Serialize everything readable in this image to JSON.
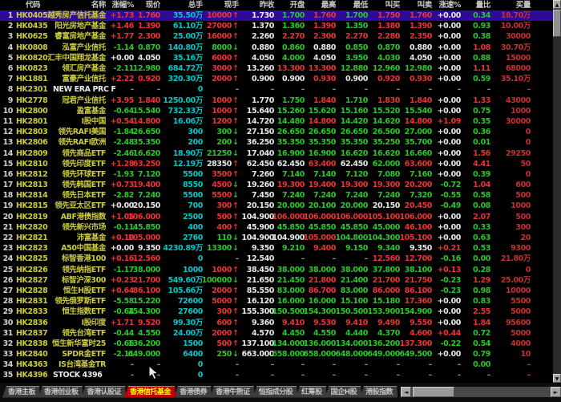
{
  "table": {
    "headers": [
      "代码",
      "名称",
      "涨幅%",
      "现价",
      "总手",
      "现手",
      "昨收",
      "开盘",
      "最高",
      "最低",
      "叫买",
      "叫卖",
      "涨速%",
      "量比",
      "买量"
    ],
    "selected_row": 1,
    "rows": [
      [
        "HK0405",
        "越秀房产信托基金",
        "+1.73",
        "1.760",
        "35.50万",
        "10000",
        "u",
        "r",
        "1.730",
        "1.700",
        "1.760",
        "1.700",
        "1.750",
        "1.760",
        "+0.00",
        "0.34",
        "18.70万"
      ],
      [
        "HK0435",
        "阳光房地产基金",
        "+1.46",
        "1.390",
        "61.10万",
        "27000",
        "u",
        "r",
        "1.370",
        "1.360",
        "1.390",
        "1.350",
        "1.380",
        "1.390",
        "+0.00",
        "0.93",
        "10.00万"
      ],
      [
        "HK0625",
        "睿富房地产基金",
        "+1.77",
        "2.300",
        "25.00万",
        "16000",
        "u",
        "r",
        "2.260",
        "2.270",
        "2.300",
        "2.270",
        "2.280",
        "2.350",
        "+0.00",
        "0.38",
        "30000"
      ],
      [
        "HK0808",
        "泓富产业信托",
        "-1.14",
        "0.870",
        "140.80万",
        "8000",
        "d",
        "g",
        "0.880",
        "0.860",
        "0.880",
        "0.850",
        "0.870",
        "0.880",
        "+0.00",
        "1.08",
        "30.70万"
      ],
      [
        "HK0820",
        "汇丰中国翔龙基金",
        "+0.00",
        "4.050",
        "35.16万",
        "6000",
        "u",
        "r",
        "4.050",
        "4.000",
        "4.050",
        "3.950",
        "4.030",
        "4.050",
        "+0.00",
        "0.88",
        "15000"
      ],
      [
        "HK0823",
        "领汇房产基金",
        "-2.11",
        "12.980",
        "684.72万",
        "3000",
        "u",
        "r",
        "13.260",
        "13.300",
        "13.300",
        "12.880",
        "12.960",
        "12.980",
        "+0.00",
        "1.11",
        "68000"
      ],
      [
        "HK1881",
        "富豪产业信托",
        "+2.22",
        "0.920",
        "320.30万",
        "2000",
        "u",
        "r",
        "0.900",
        "0.900",
        "0.930",
        "0.900",
        "0.920",
        "0.930",
        "+0.00",
        "0.59",
        "35.10万"
      ],
      [
        "HK2301",
        "NEW ERA PRC F",
        "–",
        "–",
        "0",
        "–",
        "",
        "x",
        "–",
        "–",
        "–",
        "–",
        "–",
        "–",
        "–",
        "–",
        "–"
      ],
      [
        "HK2778",
        "冠君产业信托",
        "+3.95",
        "1.840",
        "1250.00万",
        "1000",
        "u",
        "r",
        "1.770",
        "1.750",
        "1.840",
        "1.710",
        "1.830",
        "1.840",
        "+0.00",
        "1.33",
        "43000"
      ],
      [
        "HK2800",
        "盈富基金",
        "-0.64",
        "15.540",
        "732.33万",
        "1000",
        "u",
        "r",
        "15.640",
        "15.260",
        "15.620",
        "15.160",
        "15.520",
        "15.540",
        "+0.00",
        "0.75",
        "1000"
      ],
      [
        "HK2801",
        "Ⅰ股中国",
        "+0.54",
        "14.800",
        "16.06万",
        "1200",
        "u",
        "r",
        "14.720",
        "14.480",
        "14.800",
        "14.420",
        "14.620",
        "14.800",
        "+1.09",
        "0.35",
        "30000"
      ],
      [
        "HK2803",
        "领先RAFI美国",
        "-1.84",
        "26.650",
        "300",
        "300",
        "d",
        "g",
        "27.150",
        "26.650",
        "26.650",
        "26.650",
        "26.500",
        "27.000",
        "+0.00",
        "0.36",
        "0"
      ],
      [
        "HK2806",
        "领先RAFI欧洲",
        "-2.48",
        "35.350",
        "200",
        "200",
        "d",
        "g",
        "36.250",
        "35.350",
        "35.350",
        "35.350",
        "35.250",
        "35.700",
        "+0.00",
        "0.01",
        "0"
      ],
      [
        "HK2809",
        "领先商品ETF",
        "-2.46",
        "16.620",
        "18.90万",
        "21250",
        "d",
        "g",
        "17.040",
        "16.900",
        "16.900",
        "16.620",
        "16.620",
        "16.660",
        "+0.00",
        "1.56",
        "29250"
      ],
      [
        "HK2810",
        "领先印度ETF",
        "+1.28",
        "63.250",
        "12.19万",
        "28350",
        "u",
        "w",
        "62.450",
        "62.450",
        "63.400",
        "62.450",
        "62.000",
        "63.600",
        "+0.00",
        "4.41",
        "50"
      ],
      [
        "HK2812",
        "领先环球ETF",
        "-1.93",
        "7.120",
        "5500",
        "3500",
        "u",
        "r",
        "7.260",
        "7.140",
        "7.140",
        "7.120",
        "7.080",
        "7.160",
        "+0.00",
        "0.39",
        "0"
      ],
      [
        "HK2813",
        "领先韩国ETF",
        "+0.73",
        "19.400",
        "8550",
        "4500",
        "d",
        "r",
        "19.260",
        "19.300",
        "19.400",
        "19.300",
        "19.300",
        "20.200",
        "-0.72",
        "1.04",
        "600"
      ],
      [
        "HK2814",
        "领先日本ETF",
        "-2.82",
        "7.240",
        "5500",
        "5500",
        "d",
        "r",
        "7.450",
        "7.240",
        "7.240",
        "7.240",
        "7.240",
        "7.320",
        "-0.55",
        "0.58",
        "500"
      ],
      [
        "HK2815",
        "领先亚太区ETF",
        "+0.00",
        "20.150",
        "700",
        "300",
        "u",
        "r",
        "20.150",
        "20.000",
        "20.100",
        "20.000",
        "20.150",
        "20.450",
        "-0.49",
        "0.08",
        "1000"
      ],
      [
        "HK2819",
        "ABF港债指数",
        "+1.05",
        "106.000",
        "2500",
        "500",
        "u",
        "r",
        "104.900",
        "106.000",
        "106.000",
        "106.000",
        "105.100",
        "106.000",
        "+0.00",
        "2.07",
        "500"
      ],
      [
        "HK2820",
        "领先新兴市场",
        "-0.11",
        "45.850",
        "400",
        "400",
        "u",
        "r",
        "45.900",
        "45.850",
        "45.850",
        "45.850",
        "45.000",
        "46.100",
        "+0.00",
        "0.33",
        "300"
      ],
      [
        "HK2821",
        "沛富基金",
        "+0.10",
        "105.000",
        "2760",
        "110",
        "d",
        "g",
        "104.900",
        "104.900",
        "105.000",
        "104.800",
        "104.300",
        "105.100",
        "+0.00",
        "0.63",
        "20"
      ],
      [
        "HK2823",
        "A50中国基金",
        "+0.00",
        "9.350",
        "4230.89万",
        "13300",
        "d",
        "g",
        "9.350",
        "9.210",
        "9.400",
        "9.150",
        "9.340",
        "9.350",
        "+0.21",
        "0.53",
        "9300"
      ],
      [
        "HK2825",
        "标智香港100",
        "+0.16",
        "12.560",
        "0",
        "–",
        "",
        "x",
        "12.540",
        "–",
        "–",
        "–",
        "12.560",
        "12.700",
        "-0.16",
        "0.00",
        "21.80万"
      ],
      [
        "HK2826",
        "领先纳指ETF",
        "-1.17",
        "38.000",
        "1000",
        "1000",
        "u",
        "r",
        "38.450",
        "38.000",
        "38.000",
        "38.000",
        "37.800",
        "38.100",
        "+0.13",
        "0.28",
        "0"
      ],
      [
        "HK2827",
        "标智沪深300",
        "+0.23",
        "21.700",
        "549.60万",
        "100000",
        "d",
        "g",
        "21.650",
        "21.450",
        "21.800",
        "21.400",
        "21.700",
        "21.750",
        "-0.23",
        "1.29",
        "25.00万"
      ],
      [
        "HK2828",
        "恒生H股ETF",
        "+0.64",
        "86.100",
        "105.66万",
        "2000",
        "u",
        "r",
        "85.550",
        "83.000",
        "86.700",
        "83.000",
        "86.000",
        "86.100",
        "-0.23",
        "0.98",
        "10000"
      ],
      [
        "HK2831",
        "领先俄罗斯ETF",
        "-5.58",
        "15.220",
        "72600",
        "5000",
        "u",
        "r",
        "16.120",
        "16.000",
        "16.000",
        "15.100",
        "15.180",
        "17.360",
        "+0.00",
        "0.83",
        "5500"
      ],
      [
        "HK2833",
        "恒生指数ETF",
        "-0.64",
        "154.300",
        "27600",
        "300",
        "u",
        "r",
        "155.300",
        "150.500",
        "154.300",
        "150.500",
        "153.900",
        "154.900",
        "+0.00",
        "2.55",
        "5000"
      ],
      [
        "HK2836",
        "Ⅰ股印度",
        "+1.71",
        "9.520",
        "99.30万",
        "600",
        "u",
        "r",
        "9.360",
        "9.410",
        "9.530",
        "9.410",
        "9.490",
        "9.550",
        "+0.00",
        "1.84",
        "95600"
      ],
      [
        "HK2837",
        "领先台湾ETF",
        "-0.44",
        "4.550",
        "24.00万",
        "2000",
        "u",
        "r",
        "4.570",
        "4.450",
        "4.550",
        "4.440",
        "4.370",
        "4.600",
        "+0.44",
        "0.72",
        "5000"
      ],
      [
        "HK2838",
        "恒生新华富时25",
        "-0.66",
        "136.200",
        "1500",
        "500",
        "u",
        "r",
        "137.100",
        "134.000",
        "136.000",
        "134.000",
        "136.200",
        "137.300",
        "-0.22",
        "0.54",
        "4000"
      ],
      [
        "HK2840",
        "SPDR金ETF",
        "-2.11",
        "649.000",
        "6400",
        "250",
        "d",
        "g",
        "663.000",
        "658.000",
        "658.000",
        "648.000",
        "649.000",
        "649.500",
        "+0.00",
        "0.79",
        "10"
      ],
      [
        "HK4363",
        "ⅠS台湾基金TR",
        "–",
        "–",
        "0",
        "–",
        "",
        "x",
        "–",
        "–",
        "–",
        "–",
        "–",
        "–",
        "–",
        "0.00",
        "–"
      ],
      [
        "HK4396",
        "STOCK 4396",
        "–",
        "–",
        "0",
        "–",
        "",
        "x",
        "–",
        "–",
        "–",
        "–",
        "–",
        "–",
        "–",
        "–",
        "–"
      ]
    ]
  },
  "tabs": {
    "items": [
      "香港主板",
      "香港创业板",
      "香港认股证",
      "香港信托基金",
      "香港债券",
      "香港牛熊证",
      "恒指成分股",
      "红筹股",
      "国企H股",
      "港股指数"
    ],
    "active": "香港信托基金"
  },
  "glyphs": {
    "up_tick": "↑",
    "down_tick": "↓",
    "scroll_up": "▲",
    "scroll_down": "▼",
    "scroll_left": "◄",
    "scroll_right": "►"
  },
  "colors": {
    "up_red": "#ee3232",
    "down_green": "#28c828",
    "flat_white": "#e8e8e8",
    "dash_gray": "#8a8a8a",
    "volume_cyan": "#00c8c8",
    "code_yellow": "#cbcb3f",
    "header_gray": "#c8c8c8",
    "buy_vol_red": "#c63030",
    "selected_row_bg": "#2e0a99",
    "tab_active_bg": "#c00000",
    "tab_active_fg": "#ffff00"
  }
}
